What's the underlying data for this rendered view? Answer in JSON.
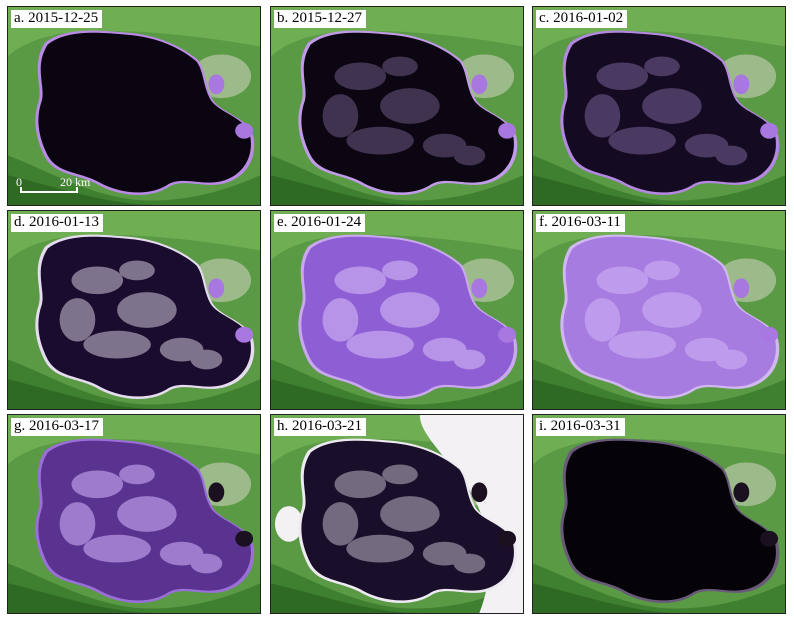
{
  "panels": [
    {
      "label": "a. 2015-12-25",
      "fill": "#0a0510",
      "rim": "#b98ae6",
      "ice": 0.0
    },
    {
      "label": "b. 2015-12-27",
      "fill": "#0b0612",
      "rim": "#c29be8",
      "ice": 0.05
    },
    {
      "label": "c. 2016-01-02",
      "fill": "#140a22",
      "rim": "#b487e0",
      "ice": 0.1
    },
    {
      "label": "d. 2016-01-13",
      "fill": "#1a0c2e",
      "rim": "#e6dcef",
      "ice": 0.45
    },
    {
      "label": "e. 2016-01-24",
      "fill": "#8e5fd4",
      "rim": "#c9a8ee",
      "ice": 1.0
    },
    {
      "label": "f. 2016-03-11",
      "fill": "#a67ce0",
      "rim": "#d2b8f0",
      "ice": 1.0
    },
    {
      "label": "g. 2016-03-17",
      "fill": "#5a3390",
      "rim": "#9a70d8",
      "ice": 0.75
    },
    {
      "label": "h. 2016-03-21",
      "fill": "#1a0f2a",
      "rim": "#eeeaf2",
      "ice": 0.35
    },
    {
      "label": "i. 2016-03-31",
      "fill": "#050308",
      "rim": "#6a5a7a",
      "ice": 0.0
    }
  ],
  "scalebar": {
    "zero": "0",
    "distance": "20 km"
  }
}
